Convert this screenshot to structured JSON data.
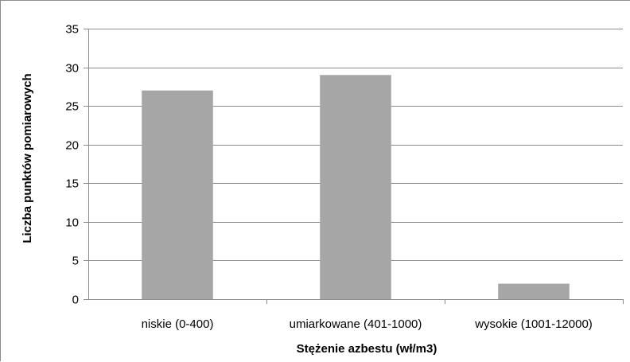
{
  "chart_data": {
    "type": "bar",
    "categories": [
      "niskie (0-400)",
      "umiarkowane (401-1000)",
      "wysokie (1001-12000)"
    ],
    "values": [
      27,
      29,
      2
    ],
    "title": "",
    "xlabel": "Stężenie azbestu (wł/m3)",
    "ylabel": "Liczba punktów pomiarowych",
    "ylim": [
      0,
      35
    ],
    "yticks": [
      0,
      5,
      10,
      15,
      20,
      25,
      30,
      35
    ],
    "grid": true,
    "legend": "none",
    "colors": {
      "bar": "#a6a6a6",
      "grid": "#8c8c8c",
      "axis": "#8c8c8c"
    }
  }
}
